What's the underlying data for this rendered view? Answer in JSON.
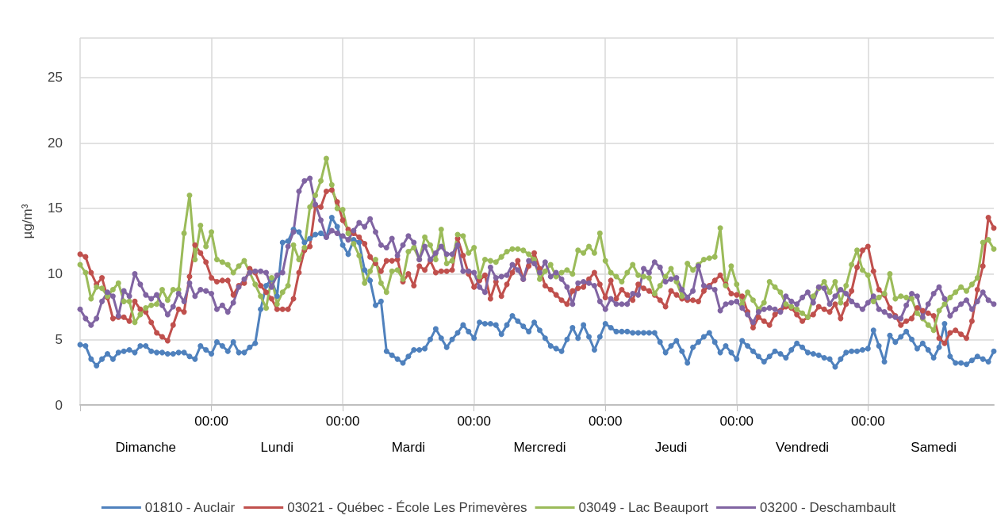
{
  "chart_data": {
    "type": "line",
    "ylabel": "µg/m³",
    "ylim": [
      0,
      28
    ],
    "yticks": [
      0,
      5,
      10,
      15,
      20,
      25
    ],
    "categories": [
      null,
      null,
      null,
      null,
      null,
      null,
      null,
      null,
      null,
      null,
      null,
      null,
      "Dimanche",
      null,
      null,
      null,
      null,
      null,
      null,
      null,
      null,
      null,
      null,
      null,
      "00:00",
      null,
      null,
      null,
      null,
      null,
      null,
      null,
      null,
      null,
      null,
      null,
      "Lundi",
      null,
      null,
      null,
      null,
      null,
      null,
      null,
      null,
      null,
      null,
      null,
      "00:00",
      null,
      null,
      null,
      null,
      null,
      null,
      null,
      null,
      null,
      null,
      null,
      "Mardi",
      null,
      null,
      null,
      null,
      null,
      null,
      null,
      null,
      null,
      null,
      null,
      "00:00",
      null,
      null,
      null,
      null,
      null,
      null,
      null,
      null,
      null,
      null,
      null,
      "Mercredi",
      null,
      null,
      null,
      null,
      null,
      null,
      null,
      null,
      null,
      null,
      null,
      "00:00",
      null,
      null,
      null,
      null,
      null,
      null,
      null,
      null,
      null,
      null,
      null,
      "Jeudi",
      null,
      null,
      null,
      null,
      null,
      null,
      null,
      null,
      null,
      null,
      null,
      "00:00",
      null,
      null,
      null,
      null,
      null,
      null,
      null,
      null,
      null,
      null,
      null,
      "Vendredi",
      null,
      null,
      null,
      null,
      null,
      null,
      null,
      null,
      null,
      null,
      null,
      "00:00",
      null,
      null,
      null,
      null,
      null,
      null,
      null,
      null,
      null,
      null,
      null,
      "Samedi",
      null,
      null,
      null,
      null,
      null,
      null,
      null,
      null,
      null,
      null,
      null
    ],
    "grid": true,
    "legend": "bottom",
    "marker": "circle",
    "line_style": "solid",
    "series": [
      {
        "name": "01810 - Auclair",
        "color": "#4f81bd",
        "values": [
          4.6,
          4.5,
          3.5,
          3.0,
          3.5,
          3.9,
          3.5,
          4.0,
          4.1,
          4.2,
          4.0,
          4.5,
          4.5,
          4.1,
          4.0,
          4.0,
          3.9,
          3.9,
          4.0,
          4.0,
          3.7,
          3.5,
          4.5,
          4.2,
          3.9,
          4.8,
          4.5,
          4.1,
          4.8,
          4.0,
          4.0,
          4.4,
          4.7,
          7.3,
          9.1,
          9.6,
          8.3,
          12.4,
          12.5,
          13.4,
          13.2,
          12.4,
          12.7,
          13.0,
          13.1,
          12.8,
          14.3,
          13.6,
          12.2,
          11.5,
          12.6,
          12.4,
          10.3,
          9.5,
          7.6,
          7.9,
          4.1,
          3.8,
          3.5,
          3.2,
          3.7,
          4.2,
          4.2,
          4.3,
          5.0,
          5.8,
          5.1,
          4.4,
          5.0,
          5.5,
          6.1,
          5.6,
          5.1,
          6.3,
          6.2,
          6.2,
          6.1,
          5.4,
          6.1,
          6.8,
          6.4,
          6.0,
          5.6,
          6.3,
          5.7,
          5.1,
          4.5,
          4.3,
          4.1,
          5.0,
          5.9,
          5.1,
          6.1,
          5.2,
          4.2,
          5.2,
          6.2,
          5.9,
          5.6,
          5.6,
          5.6,
          5.5,
          5.5,
          5.5,
          5.5,
          5.5,
          4.8,
          4.0,
          4.5,
          4.9,
          4.1,
          3.2,
          4.4,
          4.8,
          5.2,
          5.5,
          4.8,
          4.0,
          4.5,
          4.0,
          3.5,
          4.9,
          4.5,
          4.1,
          3.7,
          3.3,
          3.7,
          4.1,
          3.9,
          3.6,
          4.2,
          4.7,
          4.4,
          4.0,
          3.9,
          3.8,
          3.6,
          3.5,
          2.9,
          3.5,
          4.0,
          4.1,
          4.1,
          4.2,
          4.3,
          5.7,
          4.5,
          3.3,
          5.3,
          4.8,
          5.2,
          5.6,
          5.0,
          4.3,
          4.7,
          4.2,
          3.6,
          4.4,
          6.2,
          3.7,
          3.2,
          3.2,
          3.1,
          3.4,
          3.7,
          3.5,
          3.3,
          4.1
        ]
      },
      {
        "name": "03021 - Québec - École Les Primevères",
        "color": "#c0504d",
        "values": [
          11.5,
          11.3,
          10.1,
          9.2,
          9.7,
          8.2,
          6.6,
          6.7,
          6.7,
          6.4,
          7.9,
          7.3,
          7.1,
          6.3,
          5.5,
          5.2,
          4.9,
          6.1,
          7.3,
          7.1,
          9.8,
          12.2,
          11.6,
          10.9,
          9.7,
          9.4,
          9.5,
          9.5,
          8.4,
          9.1,
          9.3,
          10.4,
          10.1,
          9.1,
          8.6,
          8.1,
          7.3,
          7.3,
          7.3,
          8.1,
          10.1,
          11.8,
          12.1,
          15.2,
          15.1,
          16.3,
          16.4,
          15.5,
          14.1,
          13.4,
          13.1,
          12.8,
          12.3,
          11.3,
          10.8,
          10.2,
          11.0,
          11.0,
          11.1,
          9.4,
          10.0,
          9.1,
          10.6,
          10.3,
          11.0,
          10.1,
          10.2,
          10.2,
          10.3,
          12.7,
          11.4,
          10.0,
          9.0,
          9.5,
          9.9,
          8.1,
          9.4,
          8.3,
          9.2,
          10.1,
          11.0,
          9.6,
          10.6,
          11.6,
          10.4,
          9.1,
          8.8,
          8.4,
          8.0,
          7.7,
          8.7,
          8.9,
          9.0,
          9.6,
          10.1,
          9.2,
          8.2,
          9.5,
          8.1,
          8.8,
          8.4,
          8.0,
          9.2,
          8.9,
          8.7,
          8.4,
          8.0,
          7.5,
          8.7,
          8.4,
          8.1,
          8.0,
          8.0,
          7.9,
          8.7,
          9.1,
          9.5,
          9.9,
          9.2,
          8.5,
          8.4,
          8.3,
          7.1,
          5.9,
          6.7,
          6.4,
          6.1,
          6.9,
          7.2,
          7.5,
          7.4,
          6.9,
          6.4,
          6.7,
          6.9,
          7.5,
          7.3,
          7.1,
          7.7,
          6.6,
          7.7,
          8.7,
          10.5,
          11.8,
          12.1,
          10.2,
          8.8,
          8.4,
          7.4,
          6.8,
          6.1,
          6.4,
          6.6,
          7.4,
          7.2,
          7.0,
          6.8,
          5.1,
          4.7,
          5.5,
          5.7,
          5.4,
          5.1,
          6.4,
          8.8,
          10.6,
          14.3,
          13.5
        ]
      },
      {
        "name": "03049 - Lac Beauport",
        "color": "#9bbb59",
        "values": [
          10.7,
          10.1,
          8.1,
          9.0,
          8.9,
          8.3,
          8.8,
          9.3,
          7.9,
          7.9,
          6.3,
          6.9,
          7.4,
          7.6,
          7.7,
          8.8,
          8.0,
          8.8,
          8.8,
          13.1,
          16.0,
          11.1,
          13.7,
          12.1,
          13.2,
          11.1,
          10.9,
          10.7,
          10.1,
          10.6,
          11.0,
          10.1,
          9.2,
          8.3,
          7.4,
          9.7,
          7.7,
          8.6,
          9.1,
          12.2,
          11.1,
          12.0,
          15.1,
          16.0,
          17.1,
          18.8,
          16.8,
          15.0,
          14.9,
          13.1,
          12.3,
          11.4,
          9.3,
          10.2,
          11.1,
          9.3,
          8.6,
          10.2,
          10.3,
          9.6,
          11.7,
          12.0,
          11.1,
          12.8,
          12.2,
          11.1,
          13.4,
          10.8,
          11.0,
          13.0,
          12.9,
          11.6,
          12.0,
          9.8,
          11.1,
          11.0,
          10.9,
          11.3,
          11.7,
          11.9,
          11.9,
          11.8,
          11.5,
          11.1,
          9.6,
          10.2,
          10.7,
          9.8,
          10.1,
          10.3,
          10.0,
          11.8,
          11.6,
          12.1,
          11.6,
          13.1,
          11.0,
          10.1,
          9.8,
          9.4,
          10.1,
          10.7,
          9.9,
          9.8,
          9.7,
          8.5,
          9.1,
          9.8,
          10.4,
          9.4,
          8.3,
          10.8,
          10.3,
          10.7,
          11.1,
          11.2,
          11.3,
          13.5,
          9.1,
          10.6,
          9.2,
          7.7,
          8.6,
          8.0,
          7.3,
          7.8,
          9.4,
          9.0,
          8.6,
          7.7,
          7.5,
          7.3,
          7.0,
          6.7,
          8.3,
          8.9,
          9.4,
          8.6,
          9.4,
          7.8,
          9.1,
          10.7,
          11.8,
          10.3,
          9.9,
          7.9,
          8.2,
          8.5,
          10.0,
          8.1,
          8.3,
          8.2,
          8.1,
          7.0,
          6.6,
          6.1,
          5.7,
          7.2,
          7.7,
          8.2,
          8.6,
          9.0,
          8.7,
          9.2,
          9.7,
          12.4,
          12.6,
          11.9
        ]
      },
      {
        "name": "03200 - Deschambault",
        "color": "#8064a2",
        "values": [
          7.3,
          6.6,
          6.1,
          6.6,
          7.9,
          8.6,
          8.3,
          6.8,
          8.7,
          8.3,
          10.0,
          9.2,
          8.4,
          8.1,
          8.4,
          7.6,
          6.9,
          7.5,
          8.5,
          7.9,
          9.3,
          8.3,
          8.8,
          8.7,
          8.5,
          7.3,
          7.6,
          7.1,
          7.8,
          9.0,
          9.6,
          10.1,
          10.2,
          10.2,
          10.1,
          9.0,
          9.9,
          10.1,
          12.1,
          13.2,
          16.3,
          17.1,
          17.3,
          15.3,
          14.1,
          12.8,
          13.3,
          13.1,
          12.9,
          12.6,
          13.3,
          13.9,
          13.6,
          14.2,
          13.2,
          12.2,
          12.0,
          12.7,
          11.4,
          12.2,
          12.9,
          12.4,
          11.1,
          12.1,
          11.1,
          11.6,
          12.1,
          11.5,
          11.5,
          12.2,
          10.2,
          10.2,
          10.1,
          9.0,
          8.6,
          10.5,
          9.7,
          9.8,
          9.9,
          10.7,
          10.3,
          9.6,
          11.0,
          10.8,
          10.1,
          10.9,
          9.8,
          10.1,
          9.6,
          9.0,
          7.7,
          9.3,
          9.4,
          9.3,
          9.1,
          7.9,
          7.3,
          8.1,
          7.7,
          7.7,
          7.7,
          8.5,
          8.4,
          10.4,
          10.1,
          10.9,
          10.5,
          9.4,
          9.6,
          9.7,
          8.8,
          8.2,
          8.7,
          10.6,
          9.1,
          9.0,
          8.8,
          7.2,
          7.7,
          7.8,
          7.9,
          7.4,
          6.9,
          6.3,
          7.1,
          7.3,
          7.4,
          7.3,
          7.1,
          8.3,
          7.9,
          7.7,
          8.2,
          8.6,
          7.8,
          9.0,
          8.9,
          7.7,
          8.3,
          8.8,
          8.5,
          7.9,
          7.6,
          7.3,
          7.8,
          8.3,
          7.3,
          7.1,
          6.8,
          6.7,
          6.6,
          7.6,
          8.5,
          8.3,
          6.7,
          7.7,
          8.5,
          9.0,
          8.1,
          6.8,
          7.3,
          7.7,
          8.0,
          7.3,
          7.9,
          8.6,
          8.0,
          7.7
        ]
      }
    ]
  }
}
